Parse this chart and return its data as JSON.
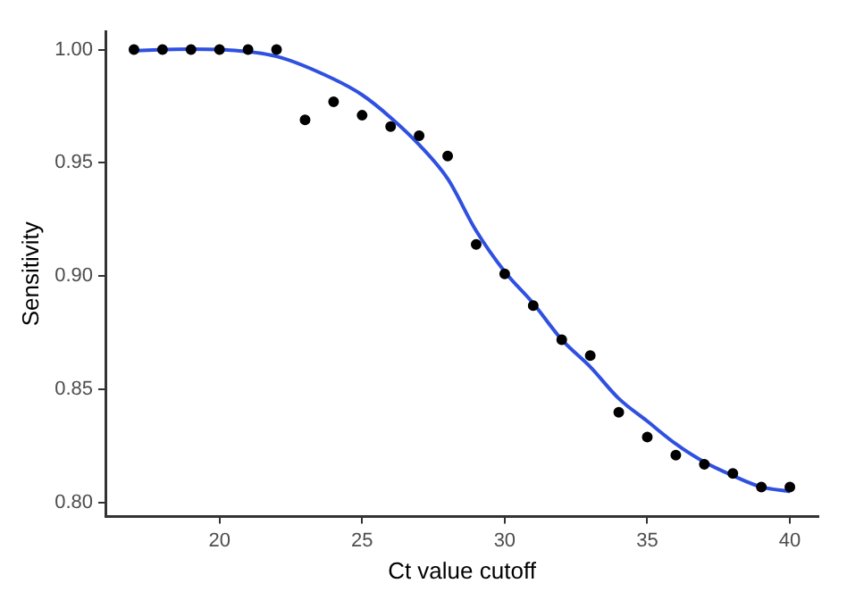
{
  "chart_data": {
    "type": "scatter",
    "xlabel": "Ct value cutoff",
    "ylabel": "Sensitivity",
    "xlim": [
      16,
      41
    ],
    "ylim": [
      0.794,
      1.008
    ],
    "xticks": [
      20,
      25,
      30,
      35,
      40
    ],
    "yticks": [
      {
        "value": 0.8,
        "label": "0.80"
      },
      {
        "value": 0.85,
        "label": "0.85"
      },
      {
        "value": 0.9,
        "label": "0.90"
      },
      {
        "value": 0.95,
        "label": "0.95"
      },
      {
        "value": 1,
        "label": "1.00"
      }
    ],
    "grid": false,
    "legend": false,
    "marker": "circle",
    "series": [
      {
        "color": "#000000",
        "x": [
          17,
          18,
          19,
          20,
          21,
          22,
          23,
          24,
          25,
          26,
          27,
          28,
          29,
          30,
          31,
          32,
          33,
          34,
          35,
          36,
          37,
          38,
          39,
          40
        ],
        "values": [
          1,
          1,
          1,
          1,
          1,
          1,
          0.969,
          0.977,
          0.971,
          0.966,
          0.962,
          0.953,
          0.914,
          0.901,
          0.887,
          0.872,
          0.865,
          0.84,
          0.829,
          0.821,
          0.817,
          0.813,
          0.807,
          0.807
        ]
      },
      {
        "type": "line",
        "color": "#2f50e0",
        "line_style": "solid",
        "marker": "none",
        "x": [
          17,
          19,
          20,
          22,
          24,
          25,
          26,
          27,
          28,
          29,
          30,
          31,
          32,
          33,
          34,
          35,
          36,
          37,
          38,
          39,
          40
        ],
        "values": [
          0.9995,
          1.0002,
          1,
          0.997,
          0.987,
          0.98,
          0.97,
          0.958,
          0.943,
          0.92,
          0.902,
          0.888,
          0.872,
          0.86,
          0.846,
          0.836,
          0.826,
          0.818,
          0.812,
          0.807,
          0.805
        ]
      }
    ]
  }
}
